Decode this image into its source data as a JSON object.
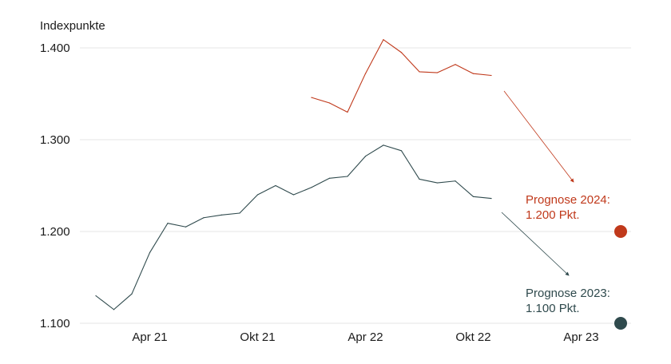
{
  "chart_data": {
    "type": "line",
    "ylabel": "Indexpunkte",
    "ylim": [
      1100,
      1400
    ],
    "y_ticks": [
      "1.400",
      "1.300",
      "1.200",
      "1.100"
    ],
    "y_tick_values": [
      1400,
      1300,
      1200,
      1100
    ],
    "x_ticks": [
      "Apr 21",
      "Okt 21",
      "Apr 22",
      "Okt 22",
      "Apr 23"
    ],
    "x_tick_index": [
      3,
      9,
      15,
      21,
      27
    ],
    "x_range_index": [
      0,
      30
    ],
    "grid": true,
    "colors": {
      "series_2023": "#2f4a4d",
      "series_2024": "#c0391b"
    },
    "series": [
      {
        "key": "series_2023",
        "x_index": [
          0,
          1,
          2,
          3,
          4,
          5,
          6,
          7,
          8,
          9,
          10,
          11,
          12,
          13,
          14,
          15,
          16,
          17,
          18,
          19,
          20,
          21,
          22,
          23
        ],
        "values": [
          1130,
          1115,
          1132,
          1177,
          1209,
          1205,
          1215,
          1218,
          1220,
          1240,
          1250,
          1240,
          1248,
          1258,
          1260,
          1282,
          1294,
          1288,
          1257,
          1253,
          1255,
          1238,
          1236,
          null
        ]
      },
      {
        "key": "series_2024",
        "x_index": [
          12,
          13,
          14,
          15,
          16,
          17,
          18,
          19,
          20,
          21,
          22
        ],
        "values": [
          1346,
          1340,
          1330,
          1372,
          1409,
          1395,
          1374,
          1373,
          1382,
          1372,
          1370
        ]
      }
    ],
    "forecasts": [
      {
        "key": "series_2024",
        "label_line1": "Prognose 2024:",
        "label_line2": "1.200 Pkt.",
        "value": 1200,
        "color": "#c0391b"
      },
      {
        "key": "series_2023",
        "label_line1": "Prognose 2023:",
        "label_line2": "1.100 Pkt.",
        "value": 1100,
        "color": "#2f4a4d"
      }
    ]
  }
}
